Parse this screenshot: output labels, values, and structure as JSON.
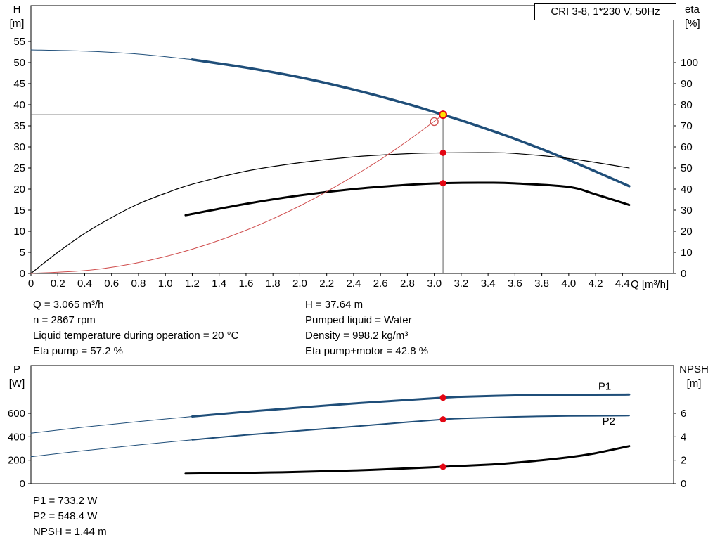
{
  "info_top": {
    "left": [
      "Q = 3.065 m³/h",
      "n = 2867 rpm",
      "Liquid temperature during operation = 20 °C",
      "Eta pump = 57.2 %"
    ],
    "right": [
      "H = 37.64 m",
      "Pumped liquid = Water",
      "Density = 998.2 kg/m³",
      "Eta pump+motor = 42.8 %"
    ]
  },
  "info_bottom": [
    "P1 = 733.2 W",
    "P2 = 548.4 W",
    "NPSH = 1.44 m"
  ],
  "colors": {
    "curve_blue": "#1f4e79",
    "curve_black": "#000000",
    "curve_red": "#d05050",
    "marker_red": "#e30613",
    "marker_yellow": "#ffe100",
    "crosshair": "#606060",
    "frame": "#000000"
  },
  "chart_data": [
    {
      "type": "line",
      "title": "CRI 3-8, 1*230 V, 50Hz",
      "grid": false,
      "x_axis": {
        "label": "Q [m³/h]",
        "min": 0,
        "max": 4.78,
        "tick_min": 0,
        "tick_max": 4.4,
        "tick_step": 0.2
      },
      "y_left": {
        "name": "H",
        "unit": "[m]",
        "min": 0,
        "max": 63.5,
        "ticks": [
          0,
          5,
          10,
          15,
          20,
          25,
          30,
          35,
          40,
          45,
          50,
          55
        ]
      },
      "y_right": {
        "name": "eta",
        "unit": "[%]",
        "min": 0,
        "max": 127,
        "ticks": [
          0,
          10,
          20,
          30,
          40,
          50,
          60,
          70,
          80,
          90,
          100
        ]
      },
      "crosshair": {
        "q": 3.065,
        "h": 37.64
      },
      "series": [
        {
          "name": "H-Q lead",
          "axis": "left",
          "color": "blue",
          "width": 1,
          "points": [
            [
              0,
              53
            ],
            [
              0.4,
              52.7
            ],
            [
              0.8,
              52
            ],
            [
              1.2,
              50.7
            ]
          ]
        },
        {
          "name": "H-Q",
          "axis": "left",
          "color": "blue",
          "width": 3.5,
          "points": [
            [
              1.2,
              50.7
            ],
            [
              1.6,
              48.8
            ],
            [
              2.0,
              46.5
            ],
            [
              2.4,
              43.6
            ],
            [
              2.8,
              40.2
            ],
            [
              3.065,
              37.64
            ],
            [
              3.2,
              36.3
            ],
            [
              3.6,
              31.9
            ],
            [
              4.0,
              26.9
            ],
            [
              4.45,
              20.7
            ]
          ]
        },
        {
          "name": "eta pump",
          "axis": "right",
          "color": "black",
          "width": 1.2,
          "points": [
            [
              0,
              0
            ],
            [
              0.2,
              10
            ],
            [
              0.4,
              19
            ],
            [
              0.6,
              26.5
            ],
            [
              0.8,
              33
            ],
            [
              1.0,
              38
            ],
            [
              1.2,
              42.3
            ],
            [
              1.6,
              48.5
            ],
            [
              2.0,
              52.5
            ],
            [
              2.4,
              55.3
            ],
            [
              2.8,
              56.8
            ],
            [
              3.065,
              57.2
            ],
            [
              3.4,
              57.3
            ],
            [
              3.6,
              56.9
            ],
            [
              4.0,
              54.5
            ],
            [
              4.45,
              50
            ]
          ]
        },
        {
          "name": "eta pump+motor",
          "axis": "right",
          "color": "black",
          "width": 3,
          "points": [
            [
              1.15,
              27.6
            ],
            [
              1.6,
              33
            ],
            [
              2.0,
              37
            ],
            [
              2.4,
              40
            ],
            [
              2.8,
              42
            ],
            [
              3.065,
              42.8
            ],
            [
              3.4,
              43
            ],
            [
              3.6,
              42.7
            ],
            [
              4.0,
              41
            ],
            [
              4.2,
              37.5
            ],
            [
              4.45,
              32.5
            ]
          ]
        },
        {
          "name": "system curve",
          "axis": "left",
          "color": "red",
          "width": 1,
          "points": [
            [
              0,
              0
            ],
            [
              0.5,
              1
            ],
            [
              1.0,
              4
            ],
            [
              1.5,
              9
            ],
            [
              2.0,
              16
            ],
            [
              2.5,
              25
            ],
            [
              2.8,
              31.4
            ],
            [
              3.065,
              37.64
            ]
          ]
        }
      ],
      "markers": [
        {
          "kind": "open-circle",
          "axis": "left",
          "q": 3.0,
          "v": 36.0
        },
        {
          "kind": "dot",
          "axis": "right",
          "q": 3.065,
          "v": 57.2
        },
        {
          "kind": "dot",
          "axis": "right",
          "q": 3.065,
          "v": 42.8
        },
        {
          "kind": "duty-point",
          "axis": "left",
          "q": 3.065,
          "v": 37.64
        }
      ]
    },
    {
      "type": "line",
      "title": "",
      "grid": false,
      "x_axis": {
        "label": "",
        "min": 0,
        "max": 4.78
      },
      "y_left": {
        "name": "P",
        "unit": "[W]",
        "min": 0,
        "max": 1008,
        "ticks": [
          0,
          200,
          400,
          600
        ]
      },
      "y_right": {
        "name": "NPSH",
        "unit": "[m]",
        "min": 0,
        "max": 10.08,
        "ticks": [
          0,
          2,
          4,
          6
        ]
      },
      "series": [
        {
          "name": "P1 lead",
          "axis": "left",
          "color": "blue",
          "width": 1,
          "points": [
            [
              0,
              430
            ],
            [
              0.4,
              483
            ],
            [
              0.8,
              530
            ],
            [
              1.2,
              573
            ]
          ]
        },
        {
          "name": "P1",
          "axis": "left",
          "color": "blue",
          "width": 3,
          "points": [
            [
              1.2,
              573
            ],
            [
              1.6,
              613
            ],
            [
              2.0,
              650
            ],
            [
              2.4,
              684
            ],
            [
              2.8,
              714
            ],
            [
              3.065,
              733.2
            ],
            [
              3.2,
              741
            ],
            [
              3.6,
              753
            ],
            [
              4.0,
              758
            ],
            [
              4.45,
              760
            ]
          ]
        },
        {
          "name": "P2 lead",
          "axis": "left",
          "color": "blue",
          "width": 1,
          "points": [
            [
              0,
              230
            ],
            [
              0.4,
              282
            ],
            [
              0.8,
              330
            ],
            [
              1.2,
              374
            ]
          ]
        },
        {
          "name": "P2",
          "axis": "left",
          "color": "blue",
          "width": 2,
          "points": [
            [
              1.2,
              374
            ],
            [
              1.6,
              415
            ],
            [
              2.0,
              452
            ],
            [
              2.4,
              487
            ],
            [
              2.8,
              525
            ],
            [
              3.065,
              548.4
            ],
            [
              3.2,
              556
            ],
            [
              3.6,
              570
            ],
            [
              4.0,
              577
            ],
            [
              4.45,
              580
            ]
          ]
        },
        {
          "name": "NPSH",
          "axis": "right",
          "color": "black",
          "width": 3,
          "points": [
            [
              1.15,
              0.85
            ],
            [
              1.6,
              0.92
            ],
            [
              2.0,
              1.0
            ],
            [
              2.4,
              1.12
            ],
            [
              2.8,
              1.3
            ],
            [
              3.065,
              1.44
            ],
            [
              3.4,
              1.62
            ],
            [
              3.6,
              1.78
            ],
            [
              4.0,
              2.25
            ],
            [
              4.2,
              2.6
            ],
            [
              4.45,
              3.2
            ]
          ]
        }
      ],
      "series_labels": [
        {
          "text": "P1",
          "axis": "left",
          "q": 4.22,
          "v": 800
        },
        {
          "text": "P2",
          "axis": "left",
          "q": 4.25,
          "v": 505
        }
      ],
      "markers": [
        {
          "kind": "dot",
          "axis": "left",
          "q": 3.065,
          "v": 733.2
        },
        {
          "kind": "dot",
          "axis": "left",
          "q": 3.065,
          "v": 548.4
        },
        {
          "kind": "dot",
          "axis": "right",
          "q": 3.065,
          "v": 1.44
        }
      ]
    }
  ]
}
